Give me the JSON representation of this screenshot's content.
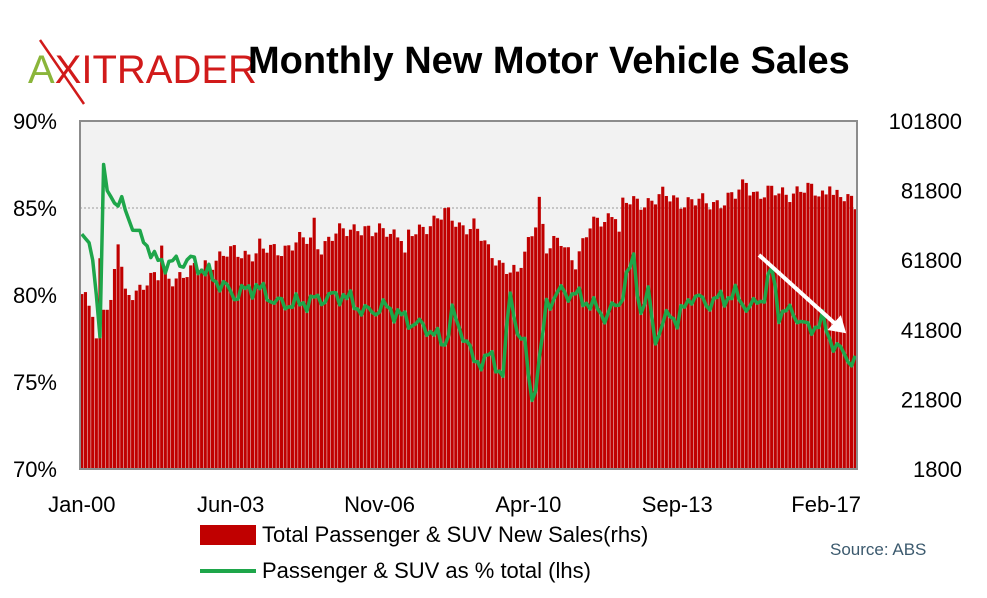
{
  "logo": {
    "first": "A",
    "rest": "XITRADER"
  },
  "title": "Monthly New Motor Vehicle Sales",
  "source": "Source: ABS",
  "colors": {
    "bar": "#c00000",
    "line": "#1ea64a",
    "plot_bg": "#f2f2f2",
    "arrow": "#ffffff"
  },
  "chart_data": {
    "type": "bar+line",
    "title": "Monthly New Motor Vehicle Sales",
    "x_tick_labels": [
      "Jan-00",
      "Jun-03",
      "Nov-06",
      "Apr-10",
      "Sep-13",
      "Feb-17"
    ],
    "x_tick_month_index": [
      0,
      41,
      82,
      123,
      164,
      205
    ],
    "left_axis": {
      "label": "Passenger & SUV as % total (lhs)",
      "ticks": [
        "90%",
        "85%",
        "80%",
        "75%",
        "70%"
      ],
      "ylim": [
        70,
        90
      ]
    },
    "right_axis": {
      "label": "Total Passenger & SUV New Sales(rhs)",
      "ticks": [
        "101800",
        "81800",
        "61800",
        "41800",
        "21800",
        "1800"
      ],
      "ylim": [
        1800,
        101800
      ]
    },
    "series": [
      {
        "name": "Total Passenger & SUV New Sales(rhs)",
        "type": "bar",
        "axis": "right",
        "keyframes": [
          [
            0,
            51000
          ],
          [
            3,
            47000
          ],
          [
            4,
            39000
          ],
          [
            5,
            62000
          ],
          [
            6,
            50000
          ],
          [
            8,
            49000
          ],
          [
            10,
            67000
          ],
          [
            12,
            51000
          ],
          [
            18,
            56000
          ],
          [
            24,
            57000
          ],
          [
            30,
            58000
          ],
          [
            36,
            62000
          ],
          [
            42,
            64000
          ],
          [
            48,
            64000
          ],
          [
            54,
            65000
          ],
          [
            60,
            67000
          ],
          [
            64,
            68000
          ],
          [
            66,
            66000
          ],
          [
            70,
            69000
          ],
          [
            76,
            72000
          ],
          [
            80,
            69000
          ],
          [
            84,
            71000
          ],
          [
            90,
            68000
          ],
          [
            96,
            73000
          ],
          [
            100,
            75000
          ],
          [
            104,
            72000
          ],
          [
            108,
            72000
          ],
          [
            112,
            64000
          ],
          [
            116,
            61000
          ],
          [
            120,
            57000
          ],
          [
            124,
            70000
          ],
          [
            126,
            78000
          ],
          [
            128,
            65000
          ],
          [
            132,
            67000
          ],
          [
            136,
            62000
          ],
          [
            140,
            71000
          ],
          [
            144,
            74000
          ],
          [
            150,
            78000
          ],
          [
            156,
            79000
          ],
          [
            160,
            80000
          ],
          [
            166,
            79000
          ],
          [
            172,
            78000
          ],
          [
            176,
            79000
          ],
          [
            180,
            80000
          ],
          [
            183,
            84000
          ],
          [
            186,
            81000
          ],
          [
            192,
            81000
          ],
          [
            198,
            82000
          ],
          [
            204,
            81000
          ],
          [
            206,
            82000
          ],
          [
            208,
            80000
          ],
          [
            213,
            78000
          ]
        ],
        "spikes": [
          [
            22,
            66000
          ],
          [
            49,
            68000
          ],
          [
            64,
            74000
          ],
          [
            89,
            64000
          ],
          [
            126,
            80000
          ],
          [
            148,
            70000
          ],
          [
            183,
            84000
          ],
          [
            206,
            83000
          ]
        ]
      },
      {
        "name": "Passenger & SUV as % total (lhs)",
        "type": "line",
        "axis": "left",
        "keyframes": [
          [
            0,
            83.5
          ],
          [
            2,
            83
          ],
          [
            3,
            82
          ],
          [
            4,
            80
          ],
          [
            5,
            77.6
          ],
          [
            6,
            87.5
          ],
          [
            7,
            86
          ],
          [
            9,
            85.3
          ],
          [
            12,
            85
          ],
          [
            15,
            83.5
          ],
          [
            18,
            83
          ],
          [
            20,
            82
          ],
          [
            24,
            81.8
          ],
          [
            30,
            82
          ],
          [
            36,
            81
          ],
          [
            42,
            80
          ],
          [
            48,
            80.5
          ],
          [
            54,
            79.5
          ],
          [
            60,
            79.5
          ],
          [
            66,
            79.8
          ],
          [
            72,
            80
          ],
          [
            78,
            79
          ],
          [
            84,
            79.3
          ],
          [
            90,
            78.5
          ],
          [
            96,
            78
          ],
          [
            98,
            77.5
          ],
          [
            100,
            77.2
          ],
          [
            102,
            79
          ],
          [
            104,
            78
          ],
          [
            106,
            77.5
          ],
          [
            108,
            76
          ],
          [
            112,
            76.5
          ],
          [
            116,
            75.5
          ],
          [
            118,
            80
          ],
          [
            120,
            78
          ],
          [
            122,
            77
          ],
          [
            124,
            74
          ],
          [
            126,
            76
          ],
          [
            128,
            79.5
          ],
          [
            132,
            80.2
          ],
          [
            136,
            80
          ],
          [
            140,
            79.5
          ],
          [
            144,
            78.8
          ],
          [
            148,
            79.5
          ],
          [
            150,
            81
          ],
          [
            152,
            82
          ],
          [
            154,
            79
          ],
          [
            156,
            80
          ],
          [
            158,
            77.5
          ],
          [
            162,
            79
          ],
          [
            164,
            78.5
          ],
          [
            168,
            80
          ],
          [
            172,
            79.5
          ],
          [
            176,
            79.8
          ],
          [
            180,
            80
          ],
          [
            184,
            79.2
          ],
          [
            188,
            80
          ],
          [
            190,
            81.5
          ],
          [
            192,
            79
          ],
          [
            196,
            79
          ],
          [
            200,
            78
          ],
          [
            204,
            78.5
          ],
          [
            206,
            77.5
          ],
          [
            208,
            77
          ],
          [
            210,
            76.5
          ],
          [
            212,
            76.3
          ],
          [
            213,
            76.2
          ]
        ]
      }
    ],
    "annotations": [
      {
        "type": "arrow",
        "description": "downward trend arrow",
        "from_month": 187,
        "to_month": 211,
        "from_value_pct": 82.3,
        "to_value_pct": 77.8
      }
    ]
  }
}
